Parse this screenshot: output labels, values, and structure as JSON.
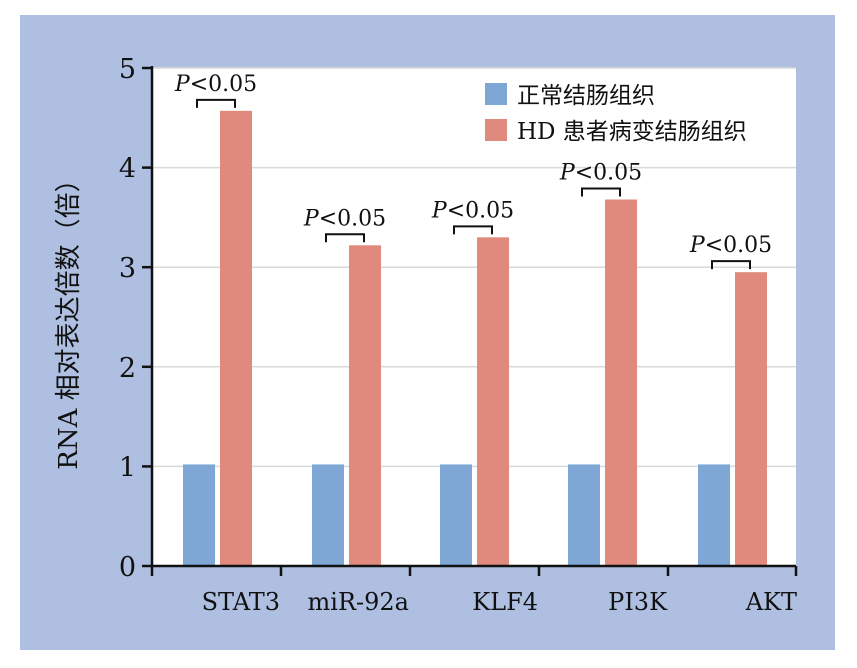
{
  "chart_data": {
    "type": "bar",
    "categories": [
      "STAT3",
      "miR-92a",
      "KLF4",
      "PI3K",
      "AKT"
    ],
    "series": [
      {
        "name": "正常结肠组织",
        "values": [
          1.02,
          1.02,
          1.02,
          1.02,
          1.02
        ],
        "color": "#7ea7d6"
      },
      {
        "name": "HD 患者病变结肠组织",
        "values": [
          4.57,
          3.22,
          3.3,
          3.68,
          2.95
        ],
        "color": "#e08a7e"
      }
    ],
    "annotations": [
      "P<0.05",
      "P<0.05",
      "P<0.05",
      "P<0.05",
      "P<0.05"
    ],
    "annotation_italic": "P",
    "annotation_rest": "<0.05",
    "ylabel": "RNA 相对表达倍数（倍）",
    "xlabel": "",
    "ylim": [
      0,
      5
    ],
    "yticks": [
      0,
      1,
      2,
      3,
      4,
      5
    ],
    "grid": true,
    "legend_position": "top-right"
  },
  "colors": {
    "background_panel": "#aebfe1",
    "plot_background": "#ffffff",
    "gridline": "#d9d9d9",
    "axis": "#111111"
  }
}
